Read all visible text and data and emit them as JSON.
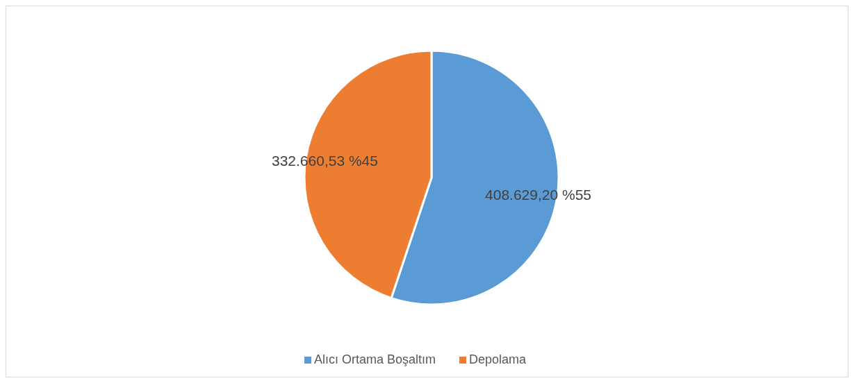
{
  "chart_data": {
    "type": "pie",
    "categories": [
      "Alıcı Ortama Boşaltım",
      "Depolama"
    ],
    "values": [
      408629.2,
      332660.53
    ],
    "colors": [
      "#5b9bd5",
      "#ed7d31"
    ],
    "value_labels": [
      "408.629,20 %55",
      "332.660,53 %45"
    ],
    "legend": "bottom"
  }
}
